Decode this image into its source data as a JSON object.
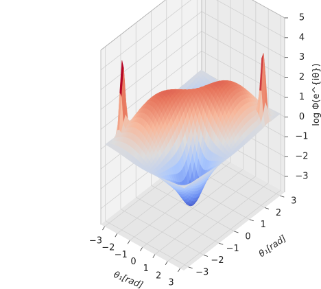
{
  "chart_data": {
    "type": "surface3d",
    "title": "",
    "xlabel": "θ₁[rad]",
    "ylabel": "θ₁[rad]",
    "zlabel": "log Φ(e^{iθ})",
    "x_ticks": [
      -3,
      -2,
      -1,
      0,
      1,
      2,
      3
    ],
    "y_ticks": [
      -3,
      -2,
      -1,
      0,
      1,
      2,
      3
    ],
    "z_ticks": [
      -3,
      -2,
      -1,
      0,
      1,
      2,
      3,
      4,
      5
    ],
    "xlim": [
      -3.3,
      3.3
    ],
    "ylim": [
      -3.3,
      3.3
    ],
    "zlim": [
      -3.8,
      5
    ],
    "colormap": "coolwarm",
    "colormap_stops": [
      "#3b4cc0",
      "#6f92f3",
      "#aac7fd",
      "#dddcdc",
      "#f7b89c",
      "#e7745b",
      "#b40426"
    ],
    "grid": true,
    "pane_color": "#f2f2f2",
    "surface_description": "Ridges along theta1 = theta2 diagonals with peaks near 2.7 and sharp spikes near the corners reaching ~4.5"
  }
}
